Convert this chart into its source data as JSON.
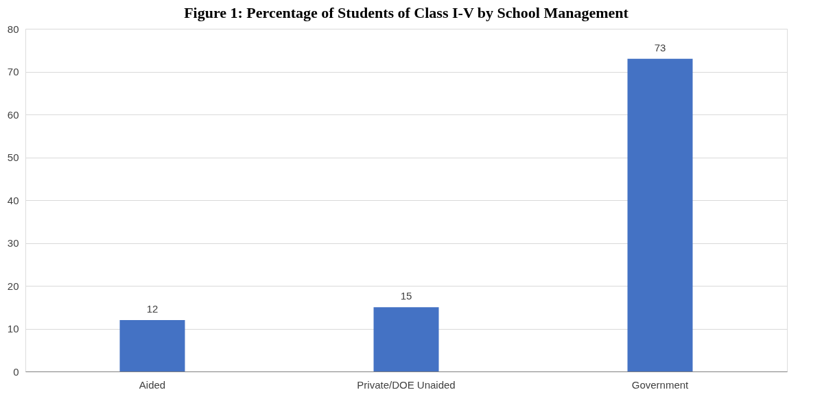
{
  "chart_data": {
    "type": "bar",
    "title": "Figure 1: Percentage of Students of Class I-V by School Management",
    "categories": [
      "Aided",
      "Private/DOE Unaided",
      "Government"
    ],
    "values": [
      12,
      15,
      73
    ],
    "color": "#4472c4",
    "ylim": [
      0,
      80
    ],
    "yticks": [
      0,
      10,
      20,
      30,
      40,
      50,
      60,
      70,
      80
    ],
    "grid": "y",
    "data_labels": true
  }
}
